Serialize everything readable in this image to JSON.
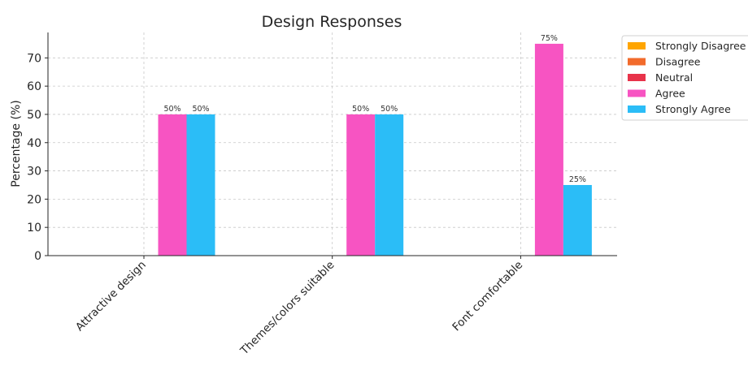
{
  "chart_data": {
    "type": "bar",
    "title": "Design Responses",
    "xlabel": "",
    "ylabel": "Percentage (%)",
    "ylim": [
      0,
      79
    ],
    "yticks": [
      0,
      10,
      20,
      30,
      40,
      50,
      60,
      70
    ],
    "grid": true,
    "legend_position": "top-right",
    "categories": [
      "Attractive design",
      "Themes/colors suitable",
      "Font comfortable"
    ],
    "series": [
      {
        "name": "Strongly Disagree",
        "color": "#FFA500",
        "values": [
          0,
          0,
          0
        ],
        "labels": [
          "",
          "",
          ""
        ]
      },
      {
        "name": "Disagree",
        "color": "#F26B2C",
        "values": [
          0,
          0,
          0
        ],
        "labels": [
          "",
          "",
          ""
        ]
      },
      {
        "name": "Neutral",
        "color": "#E8334A",
        "values": [
          0,
          0,
          0
        ],
        "labels": [
          "",
          "",
          ""
        ]
      },
      {
        "name": "Agree",
        "color": "#F754C2",
        "values": [
          50,
          50,
          75
        ],
        "labels": [
          "50%",
          "50%",
          "75%"
        ]
      },
      {
        "name": "Strongly Agree",
        "color": "#2BBDF7",
        "values": [
          50,
          50,
          25
        ],
        "labels": [
          "50%",
          "50%",
          "25%"
        ]
      }
    ]
  }
}
